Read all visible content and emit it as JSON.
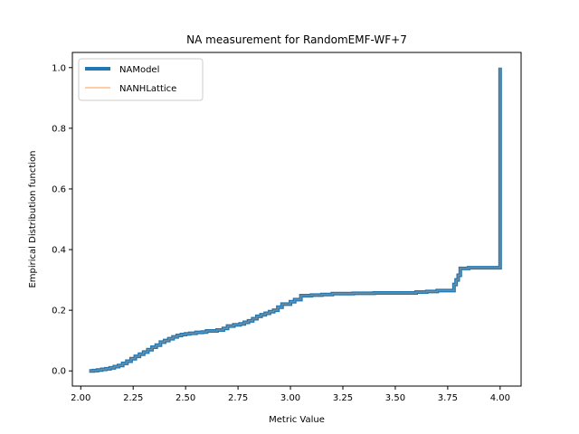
{
  "chart_data": {
    "type": "line",
    "title": "NA measurement for RandomEMF-WF+7",
    "xlabel": "Metric Value",
    "ylabel": "Empirical Distribution function",
    "xlim": [
      1.96,
      4.1
    ],
    "ylim": [
      -0.05,
      1.05
    ],
    "xticks": [
      2.0,
      2.25,
      2.5,
      2.75,
      3.0,
      3.25,
      3.5,
      3.75,
      4.0
    ],
    "xtick_labels": [
      "2.00",
      "2.25",
      "2.50",
      "2.75",
      "3.00",
      "3.25",
      "3.50",
      "3.75",
      "4.00"
    ],
    "yticks": [
      0.0,
      0.2,
      0.4,
      0.6,
      0.8,
      1.0
    ],
    "ytick_labels": [
      "0.0",
      "0.2",
      "0.4",
      "0.6",
      "0.8",
      "1.0"
    ],
    "grid": false,
    "legend_position": "top-left",
    "series": [
      {
        "name": "NAModel",
        "color": "#1f77b4",
        "style": "step",
        "x": [
          2.04,
          2.06,
          2.08,
          2.1,
          2.12,
          2.14,
          2.16,
          2.18,
          2.2,
          2.22,
          2.24,
          2.26,
          2.28,
          2.3,
          2.32,
          2.34,
          2.36,
          2.38,
          2.4,
          2.42,
          2.44,
          2.46,
          2.48,
          2.5,
          2.52,
          2.55,
          2.58,
          2.6,
          2.65,
          2.68,
          2.7,
          2.73,
          2.76,
          2.78,
          2.8,
          2.82,
          2.84,
          2.86,
          2.88,
          2.9,
          2.92,
          2.94,
          2.96,
          3.0,
          3.02,
          3.05,
          3.1,
          3.15,
          3.2,
          3.3,
          3.4,
          3.5,
          3.6,
          3.65,
          3.7,
          3.75,
          3.78,
          3.79,
          3.8,
          3.81,
          3.85,
          3.9,
          3.95,
          4.0
        ],
        "y": [
          0.0,
          0.001,
          0.003,
          0.005,
          0.007,
          0.01,
          0.014,
          0.018,
          0.025,
          0.032,
          0.04,
          0.048,
          0.055,
          0.062,
          0.07,
          0.078,
          0.085,
          0.095,
          0.1,
          0.106,
          0.112,
          0.117,
          0.12,
          0.122,
          0.124,
          0.127,
          0.128,
          0.132,
          0.135,
          0.14,
          0.148,
          0.152,
          0.155,
          0.16,
          0.165,
          0.172,
          0.18,
          0.185,
          0.19,
          0.195,
          0.2,
          0.21,
          0.22,
          0.228,
          0.235,
          0.248,
          0.25,
          0.252,
          0.255,
          0.256,
          0.257,
          0.257,
          0.26,
          0.262,
          0.265,
          0.265,
          0.285,
          0.3,
          0.315,
          0.338,
          0.34,
          0.34,
          0.34,
          1.0
        ]
      },
      {
        "name": "NANHLattice",
        "color": "#ffbb88",
        "style": "step",
        "x": [
          2.04,
          2.06,
          2.08,
          2.1,
          2.12,
          2.14,
          2.16,
          2.18,
          2.2,
          2.22,
          2.24,
          2.26,
          2.28,
          2.3,
          2.32,
          2.34,
          2.36,
          2.38,
          2.4,
          2.42,
          2.44,
          2.46,
          2.48,
          2.5,
          2.52,
          2.55,
          2.58,
          2.6,
          2.65,
          2.68,
          2.7,
          2.73,
          2.76,
          2.78,
          2.8,
          2.82,
          2.84,
          2.86,
          2.88,
          2.9,
          2.92,
          2.94,
          2.96,
          3.0,
          3.02,
          3.05,
          3.1,
          3.15,
          3.2,
          3.3,
          3.4,
          3.5,
          3.6,
          3.65,
          3.7,
          3.75,
          3.78,
          3.79,
          3.8,
          3.81,
          3.85,
          3.9,
          3.95,
          4.0
        ],
        "y": [
          0.0,
          0.001,
          0.003,
          0.005,
          0.007,
          0.01,
          0.014,
          0.018,
          0.025,
          0.032,
          0.04,
          0.048,
          0.055,
          0.062,
          0.07,
          0.078,
          0.085,
          0.095,
          0.1,
          0.106,
          0.112,
          0.117,
          0.12,
          0.122,
          0.124,
          0.127,
          0.128,
          0.132,
          0.135,
          0.14,
          0.148,
          0.152,
          0.155,
          0.16,
          0.165,
          0.172,
          0.18,
          0.185,
          0.19,
          0.195,
          0.2,
          0.21,
          0.22,
          0.228,
          0.235,
          0.248,
          0.25,
          0.252,
          0.255,
          0.256,
          0.257,
          0.257,
          0.26,
          0.262,
          0.265,
          0.265,
          0.285,
          0.3,
          0.315,
          0.338,
          0.34,
          0.34,
          0.34,
          1.0
        ]
      }
    ]
  }
}
